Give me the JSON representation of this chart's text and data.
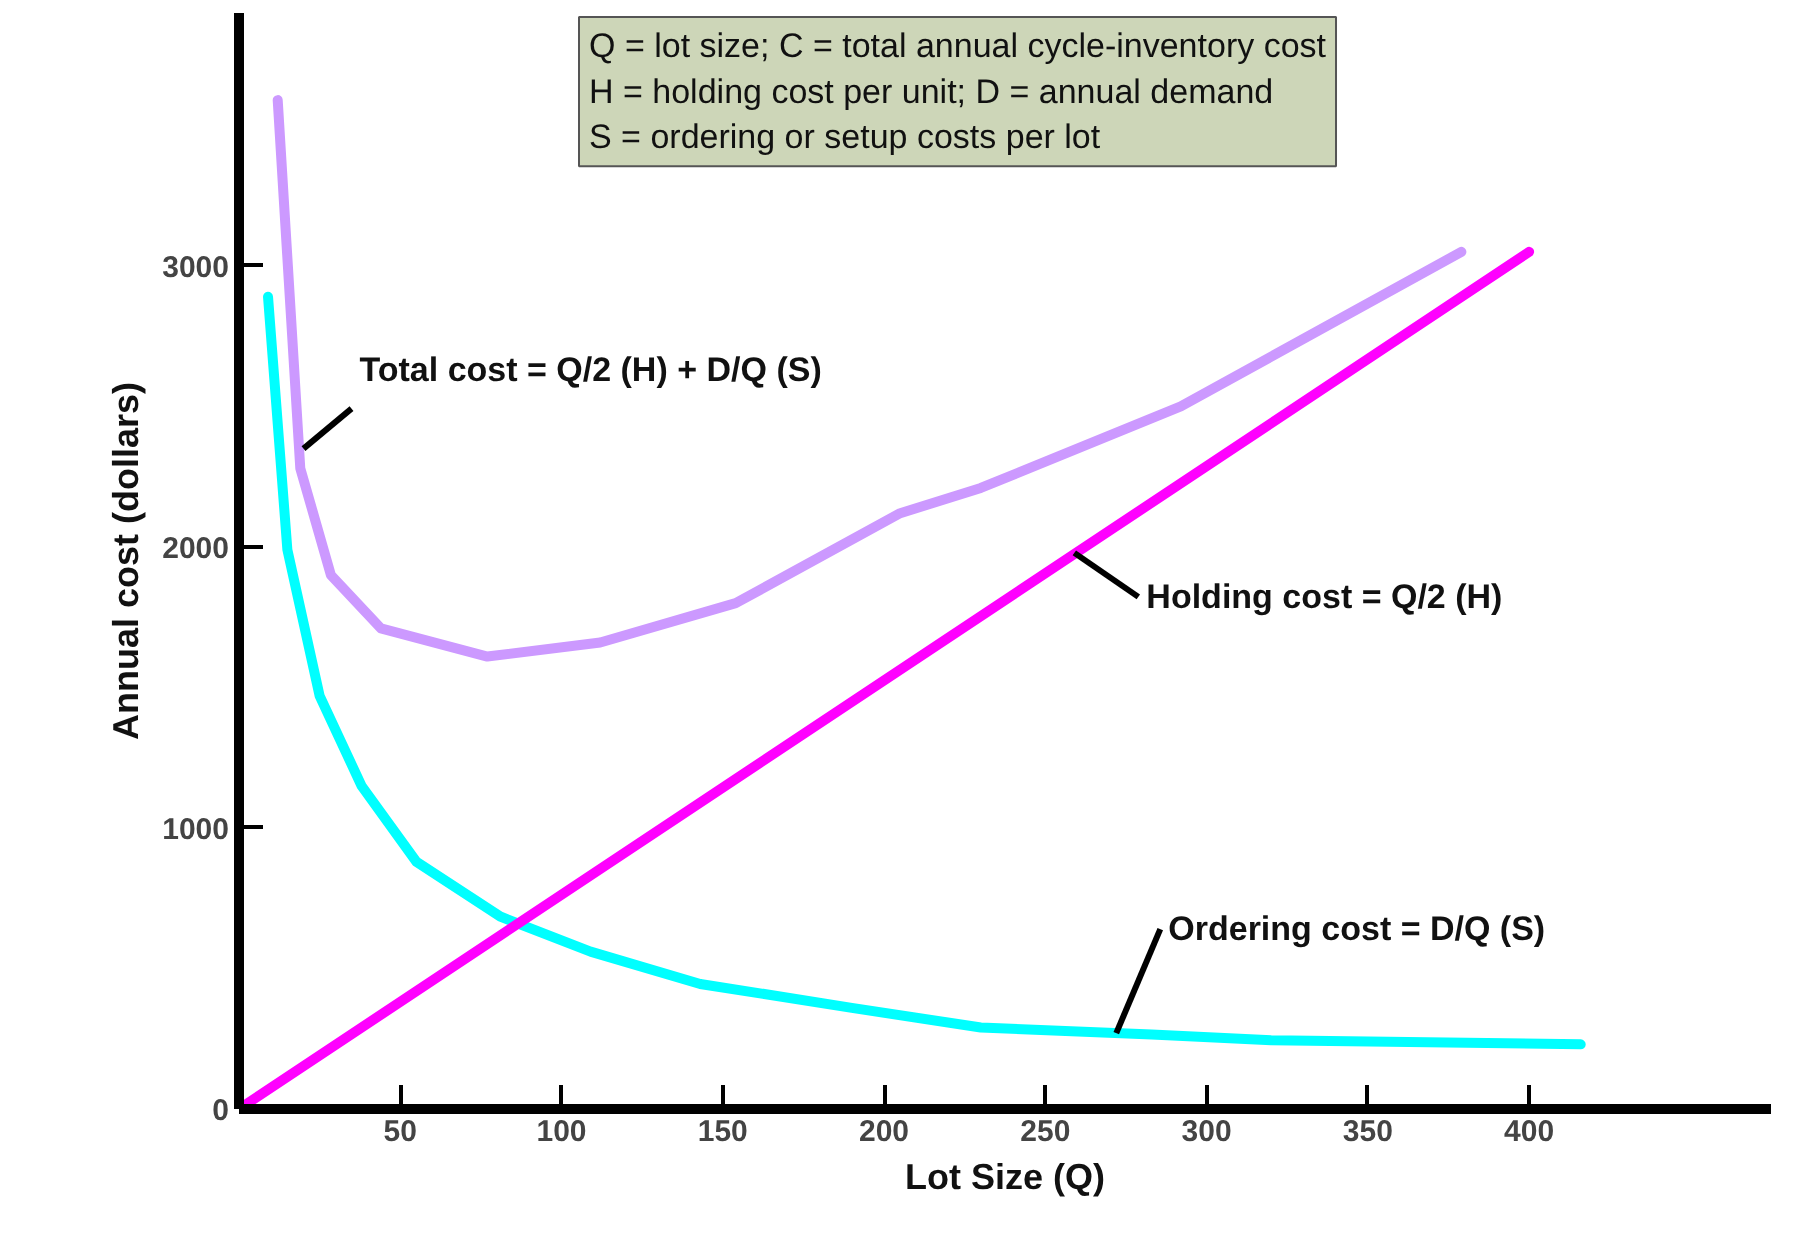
{
  "chart_data": {
    "type": "line",
    "xlabel": "Lot Size (Q)",
    "ylabel": "Annual cost (dollars)",
    "xlim": [
      0,
      475
    ],
    "ylim": [
      0,
      3900
    ],
    "xticks": [
      50,
      100,
      150,
      200,
      250,
      300,
      350,
      400
    ],
    "yticks": [
      0,
      1000,
      2000,
      3000
    ],
    "grid": false,
    "series": [
      {
        "color": "#cc99ff",
        "x": [
          12,
          19,
          28.5,
          44,
          77,
          112,
          154,
          205,
          230,
          292,
          379
        ],
        "values": [
          3590,
          2280,
          1900,
          1710,
          1610,
          1660,
          1800,
          2120,
          2210,
          2500,
          3050
        ]
      },
      {
        "color": "#00ffff",
        "x": [
          9,
          15,
          25,
          38,
          55,
          81,
          109,
          143,
          190,
          230,
          283,
          320,
          416
        ],
        "values": [
          2890,
          1990,
          1470,
          1150,
          880,
          685,
          560,
          445,
          360,
          290,
          265,
          245,
          230
        ]
      },
      {
        "color": "#ff00ff",
        "x": [
          0,
          400
        ],
        "values": [
          0,
          3050
        ]
      }
    ],
    "annotations": [
      "Q = lot size; C = total annual cycle-inventory cost",
      "H = holding cost per unit; D = annual demand",
      "S = ordering or setup costs per lot",
      {
        "text": "Total cost = Q/2 (H) + D/Q (S)",
        "x": 20,
        "y": 2350
      },
      {
        "text": "Holding cost = Q/2 (H)",
        "x": 259,
        "y": 1979
      },
      {
        "text": "Ordering cost = D/Q (S)",
        "x": 272,
        "y": 270
      }
    ]
  }
}
